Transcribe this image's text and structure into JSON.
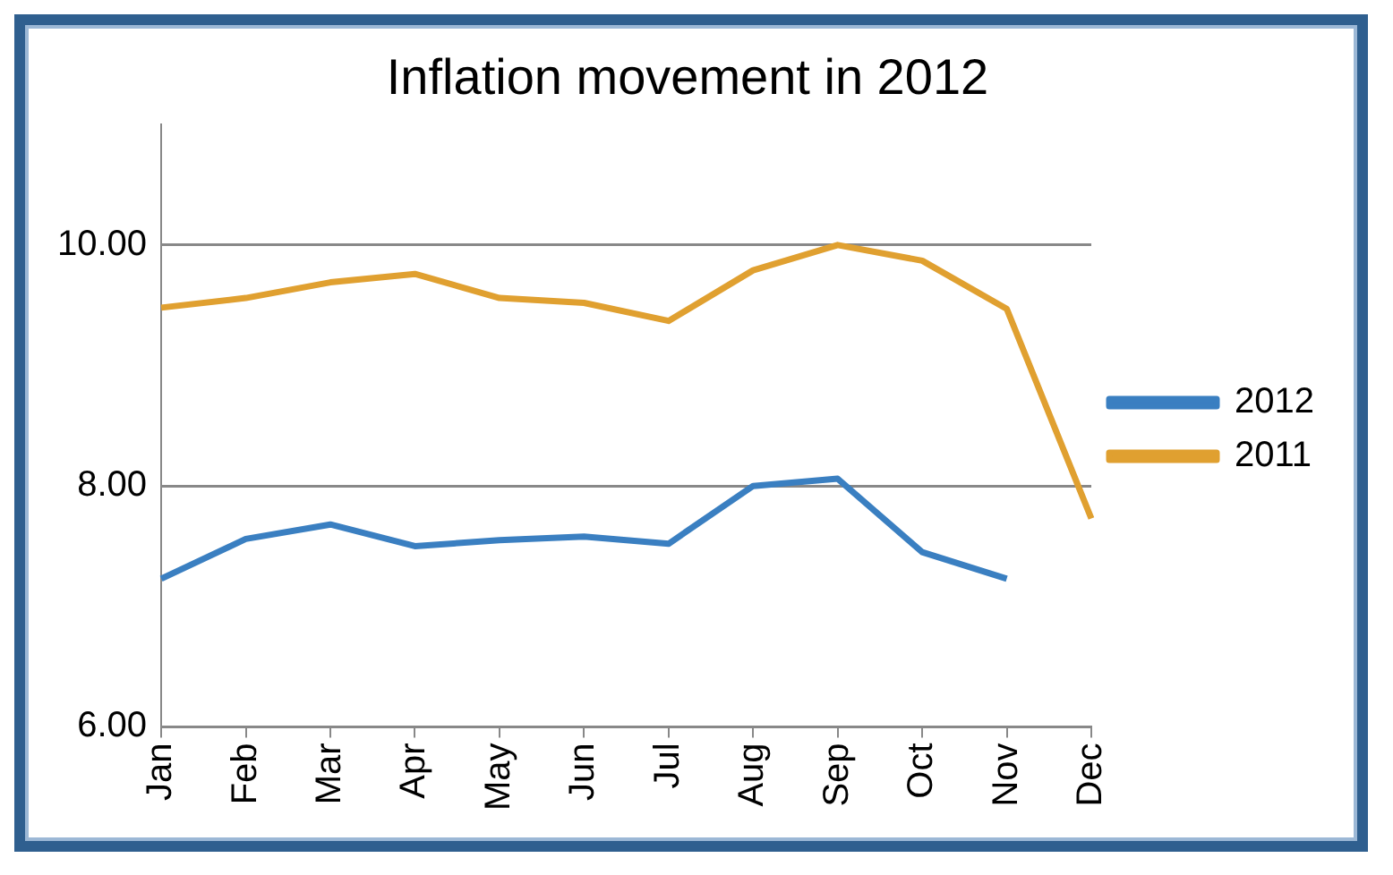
{
  "chart_data": {
    "type": "line",
    "title": "Inflation movement in 2012",
    "categories": [
      "Jan",
      "Feb",
      "Mar",
      "Apr",
      "May",
      "Jun",
      "Jul",
      "Aug",
      "Sep",
      "Oct",
      "Nov",
      "Dec"
    ],
    "series": [
      {
        "name": "2012",
        "color": "#3a7fc1",
        "values": [
          7.23,
          7.56,
          7.68,
          7.5,
          7.55,
          7.58,
          7.52,
          8.0,
          8.06,
          7.45,
          7.23,
          null
        ]
      },
      {
        "name": "2011",
        "color": "#e0a030",
        "values": [
          9.48,
          9.56,
          9.69,
          9.76,
          9.56,
          9.52,
          9.37,
          9.79,
          10.0,
          9.87,
          9.47,
          7.73
        ]
      }
    ],
    "ylim": [
      6,
      11
    ],
    "yticks": [
      {
        "value": 6,
        "label": "6.00"
      },
      {
        "value": 8,
        "label": "8.00"
      },
      {
        "value": 10,
        "label": "10.00"
      }
    ],
    "grid": "y",
    "legend": "right",
    "marker": "none",
    "line_style": "solid"
  }
}
